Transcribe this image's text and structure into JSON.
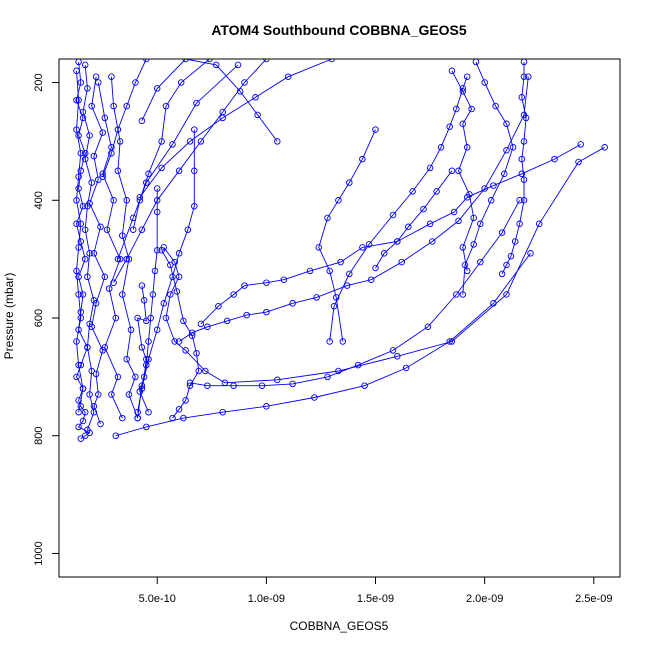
{
  "chart_data": {
    "type": "scatter",
    "title": "ATOM4 Southbound COBBNA_GEOS5",
    "xlabel": "COBBNA_GEOS5",
    "ylabel": "Pressure (mbar)",
    "x_scale": "linear",
    "y_scale": "linear",
    "y_inverted": true,
    "xlim": [
      5e-11,
      2.62e-09
    ],
    "ylim": [
      1040,
      160
    ],
    "grid": false,
    "legend": "none",
    "marker": "open-circle",
    "line_color": "#0000ff",
    "x_ticks": [
      {
        "value": 5e-10,
        "label": "5.0e-10"
      },
      {
        "value": 1e-09,
        "label": "1.0e-09"
      },
      {
        "value": 1.5e-09,
        "label": "1.5e-09"
      },
      {
        "value": 2e-09,
        "label": "2.0e-09"
      },
      {
        "value": 2.5e-09,
        "label": "2.5e-09"
      }
    ],
    "y_ticks": [
      {
        "value": 200,
        "label": "200"
      },
      {
        "value": 400,
        "label": "400"
      },
      {
        "value": 600,
        "label": "600"
      },
      {
        "value": 800,
        "label": "800"
      },
      {
        "value": 1000,
        "label": "1000"
      }
    ],
    "series": [
      {
        "x": [
          1.4e-10,
          1.5e-10,
          1.3e-10,
          1.6e-10,
          1.4e-10,
          1.7e-10,
          1.5e-10,
          1.4e-10,
          1.6e-10,
          1.3e-10,
          1.5e-10,
          1.7e-10,
          1.4e-10,
          1.6e-10,
          1.5e-10,
          1.4e-10,
          1.8e-10,
          1.5e-10,
          1.3e-10,
          1.6e-10,
          1.4e-10,
          1.5e-10,
          1.7e-10,
          1.6e-10,
          1.4e-10,
          1.9e-10,
          1.7e-10,
          1.5e-10
        ],
        "y": [
          165,
          200,
          230,
          260,
          290,
          320,
          350,
          380,
          410,
          440,
          470,
          500,
          530,
          560,
          590,
          620,
          650,
          680,
          700,
          720,
          740,
          750,
          760,
          775,
          785,
          795,
          800,
          805
        ]
      },
      {
        "x": [
          1.7e-10,
          1.8e-10,
          1.6e-10,
          1.9e-10,
          1.7e-10,
          2e-10,
          1.8e-10,
          1.7e-10,
          1.9e-10,
          1.8e-10,
          2.1e-10,
          1.9e-10,
          1.8e-10,
          2e-10,
          1.9e-10,
          2.1e-10,
          1.8e-10
        ],
        "y": [
          170,
          210,
          250,
          290,
          330,
          370,
          410,
          450,
          490,
          530,
          570,
          610,
          650,
          690,
          730,
          760,
          790
        ]
      },
      {
        "x": [
          1.3e-10,
          1.4e-10,
          1.3e-10,
          1.5e-10,
          1.4e-10,
          1.3e-10,
          1.5e-10,
          1.4e-10,
          1.3e-10,
          1.4e-10,
          1.5e-10,
          1.3e-10,
          1.4e-10,
          1.6e-10,
          1.4e-10
        ],
        "y": [
          180,
          230,
          280,
          320,
          360,
          400,
          440,
          480,
          520,
          560,
          600,
          640,
          680,
          720,
          760
        ]
      },
      {
        "x": [
          2.2e-10,
          2e-10,
          2.5e-10,
          2.1e-10,
          2.3e-10,
          1.9e-10,
          2.4e-10,
          2.1e-10,
          2.6e-10,
          2.2e-10,
          2e-10,
          2.5e-10,
          2.2e-10,
          2.3e-10,
          2.1e-10,
          2.4e-10
        ],
        "y": [
          190,
          240,
          285,
          325,
          365,
          405,
          445,
          490,
          530,
          575,
          615,
          655,
          695,
          730,
          750,
          780
        ]
      },
      {
        "x": [
          2.3e-10,
          2.6e-10,
          2.9e-10,
          2.5e-10,
          3e-10,
          2.7e-10,
          3.3e-10,
          2.8e-10,
          3.1e-10,
          2.6e-10,
          3.2e-10,
          2.9e-10,
          3.4e-10
        ],
        "y": [
          200,
          260,
          310,
          355,
          400,
          450,
          500,
          550,
          600,
          650,
          700,
          730,
          770
        ]
      },
      {
        "x": [
          2.9e-10,
          3e-10,
          3.3e-10,
          3.2e-10,
          3.6e-10,
          3.4e-10,
          3.7e-10,
          3.4e-10,
          3.8e-10,
          3.6e-10,
          4e-10,
          3.7e-10,
          4.1e-10
        ],
        "y": [
          190,
          240,
          300,
          350,
          400,
          460,
          500,
          560,
          620,
          670,
          700,
          730,
          770
        ]
      },
      {
        "x": [
          1e-09,
          9e-10,
          8e-10,
          7e-10,
          6e-10,
          5e-10,
          4.3e-10,
          3.6e-10,
          3e-10
        ],
        "y": [
          160,
          200,
          250,
          300,
          350,
          400,
          450,
          500,
          540
        ]
      },
      {
        "x": [
          1.3e-09,
          1.1e-09,
          9.5e-10,
          8e-10,
          6.5e-10,
          5.2e-10,
          4.2e-10
        ],
        "y": [
          160,
          190,
          225,
          260,
          300,
          345,
          395
        ]
      },
      {
        "x": [
          7.4e-10,
          6.1e-10,
          5.4e-10,
          5.2e-10,
          4.6e-10,
          4.2e-10,
          3.9e-10
        ],
        "y": [
          160,
          200,
          240,
          300,
          355,
          400,
          450
        ]
      },
      {
        "x": [
          4.5e-10,
          4e-10,
          3.6e-10,
          3.2e-10,
          2.9e-10,
          2.5e-10
        ],
        "y": [
          160,
          200,
          240,
          280,
          320,
          360
        ]
      },
      {
        "x": [
          8.7e-10,
          6.8e-10,
          5.7e-10,
          4.5e-10,
          3.9e-10,
          3.2e-10
        ],
        "y": [
          170,
          235,
          305,
          370,
          430,
          500
        ]
      },
      {
        "x": [
          1.05e-09,
          9.6e-10,
          8.8e-10,
          7.7e-10,
          6.3e-10,
          5e-10,
          4.3e-10
        ],
        "y": [
          300,
          255,
          215,
          170,
          160,
          210,
          265
        ]
      },
      {
        "x": [
          6.7e-10,
          6.7e-10,
          6.7e-10,
          6.4e-10,
          6e-10,
          5.7e-10,
          5.3e-10,
          5e-10,
          4.6e-10,
          4.3e-10,
          4.1e-10
        ],
        "y": [
          280,
          350,
          410,
          450,
          490,
          530,
          575,
          620,
          670,
          720,
          760
        ]
      },
      {
        "x": [
          5e-10,
          5e-10,
          5e-10,
          4.9e-10,
          4.8e-10,
          4.7e-10,
          4.6e-10,
          4.5e-10,
          4.3e-10,
          4.1e-10
        ],
        "y": [
          380,
          420,
          485,
          520,
          560,
          600,
          640,
          680,
          715,
          770
        ]
      },
      {
        "x": [
          4.3e-10,
          4.4e-10,
          4.5e-10,
          4.1e-10,
          4.3e-10,
          4.5e-10,
          4.4e-10,
          4.2e-10,
          4.6e-10
        ],
        "y": [
          545,
          570,
          605,
          600,
          650,
          670,
          700,
          725,
          760
        ]
      },
      {
        "x": [
          5.2e-10,
          5.6e-10,
          5.9e-10,
          6.2e-10,
          6.6e-10,
          6.8e-10,
          6.9e-10,
          6.5e-10,
          6.3e-10,
          6e-10,
          5.7e-10
        ],
        "y": [
          485,
          510,
          555,
          605,
          630,
          660,
          690,
          715,
          740,
          755,
          770
        ]
      },
      {
        "x": [
          5.3e-10,
          5.8e-10,
          6e-10,
          5.6e-10,
          5.4e-10,
          5.8e-10,
          6.3e-10,
          7.2e-10,
          8.1e-10,
          1.05e-09,
          1.33e-09,
          1.6e-09,
          1.85e-09,
          2.1e-09,
          2.25e-09,
          2.43e-09,
          2.55e-09
        ],
        "y": [
          480,
          505,
          530,
          560,
          600,
          640,
          655,
          690,
          710,
          705,
          690,
          665,
          640,
          560,
          440,
          335,
          310
        ]
      },
      {
        "x": [
          7e-10,
          7.8e-10,
          8.5e-10,
          9e-10,
          1e-09,
          1.08e-09,
          1.2e-09,
          1.34e-09,
          1.44e-09,
          1.6e-09,
          1.75e-09,
          1.86e-09,
          1.92e-09,
          2.04e-09,
          2.17e-09,
          2.32e-09,
          2.44e-09
        ],
        "y": [
          610,
          580,
          560,
          545,
          540,
          535,
          520,
          505,
          480,
          470,
          440,
          420,
          395,
          375,
          355,
          330,
          305
        ]
      },
      {
        "x": [
          6e-10,
          6.6e-10,
          7.3e-10,
          8.2e-10,
          9.1e-10,
          1e-09,
          1.12e-09,
          1.23e-09,
          1.37e-09,
          1.48e-09,
          1.62e-09,
          1.76e-09,
          1.88e-09,
          2e-09,
          2.1e-09,
          2.18e-09,
          2.2e-09
        ],
        "y": [
          640,
          625,
          615,
          605,
          595,
          590,
          575,
          565,
          545,
          535,
          505,
          470,
          435,
          380,
          315,
          255,
          190
        ]
      },
      {
        "x": [
          6.5e-10,
          7.3e-10,
          8.5e-10,
          9.8e-10,
          1.12e-09,
          1.28e-09,
          1.42e-09,
          1.58e-09,
          1.74e-09,
          1.87e-09,
          1.98e-09,
          2.08e-09,
          2.16e-09
        ],
        "y": [
          710,
          715,
          715,
          715,
          712,
          700,
          680,
          655,
          615,
          560,
          505,
          455,
          400
        ]
      },
      {
        "x": [
          3.1e-10,
          4.5e-10,
          6.2e-10,
          8e-10,
          1e-09,
          1.22e-09,
          1.45e-09,
          1.64e-09,
          1.84e-09,
          2.04e-09,
          2.21e-09
        ],
        "y": [
          800,
          785,
          770,
          760,
          750,
          735,
          715,
          685,
          640,
          575,
          490
        ]
      },
      {
        "x": [
          1.92e-09,
          1.9e-09,
          1.87e-09,
          1.84e-09,
          1.8e-09,
          1.75e-09,
          1.67e-09,
          1.58e-09,
          1.47e-09,
          1.38e-09,
          1.31e-09,
          1.29e-09
        ],
        "y": [
          190,
          210,
          245,
          275,
          310,
          345,
          385,
          425,
          475,
          525,
          580,
          640
        ]
      },
      {
        "x": [
          2.18e-09,
          2.18e-09,
          2.17e-09,
          2.19e-09,
          2.18e-09,
          2.17e-09,
          2.18e-09,
          2.18e-09,
          2.16e-09,
          2.14e-09,
          2.12e-09,
          2.1e-09,
          2.08e-09
        ],
        "y": [
          165,
          190,
          225,
          260,
          300,
          330,
          365,
          400,
          440,
          470,
          495,
          510,
          525
        ]
      },
      {
        "x": [
          1.96e-09,
          2e-09,
          2.05e-09,
          2.1e-09,
          2.13e-09,
          2.09e-09,
          2.03e-09,
          1.98e-09,
          1.95e-09,
          1.91e-09,
          1.9e-09
        ],
        "y": [
          165,
          200,
          240,
          270,
          310,
          355,
          400,
          440,
          475,
          510,
          560
        ]
      },
      {
        "x": [
          1.85e-09,
          1.78e-09,
          1.72e-09,
          1.65e-09,
          1.6e-09,
          1.54e-09,
          1.5e-09
        ],
        "y": [
          350,
          385,
          415,
          445,
          470,
          490,
          515
        ]
      },
      {
        "x": [
          1.5e-09,
          1.44e-09,
          1.38e-09,
          1.33e-09,
          1.28e-09,
          1.24e-09,
          1.29e-09,
          1.32e-09,
          1.35e-09
        ],
        "y": [
          280,
          330,
          370,
          400,
          430,
          480,
          520,
          565,
          640
        ]
      },
      {
        "x": [
          1.85e-09,
          1.9e-09,
          1.94e-09,
          1.9e-09,
          1.92e-09,
          1.88e-09,
          1.93e-09,
          1.95e-09,
          1.9e-09,
          1.92e-09
        ],
        "y": [
          180,
          215,
          245,
          270,
          310,
          350,
          390,
          430,
          480,
          520
        ]
      }
    ]
  }
}
